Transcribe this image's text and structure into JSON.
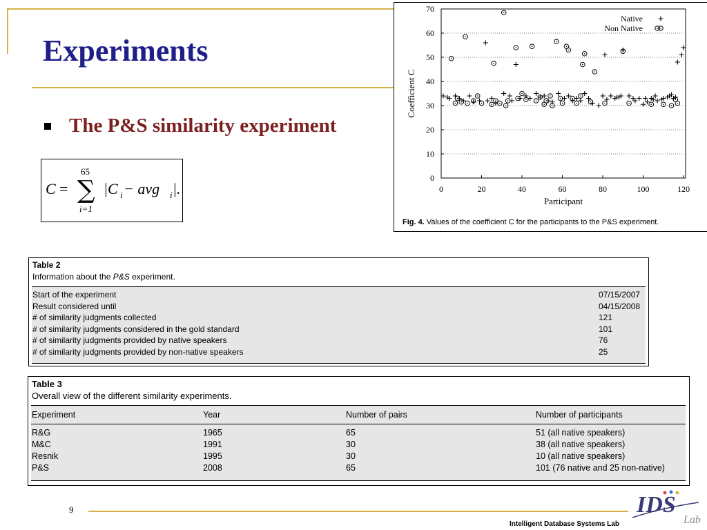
{
  "slide": {
    "title": "Experiments",
    "bullet": "The P&S similarity experiment",
    "page_number": "9",
    "footer": "Intelligent Database Systems Lab",
    "colors": {
      "accent": "#d4b24a",
      "title": "#1f1f8a",
      "bullet_text": "#7b1f1f"
    }
  },
  "formula": {
    "lhs": "C",
    "eq": "=",
    "sum_upper": "65",
    "sum_lower": "i=1",
    "body": "|C",
    "body_sub": "i",
    "minus": " − avg",
    "avg_sub": "i",
    "end": "|."
  },
  "figure": {
    "caption_label": "Fig. 4.",
    "caption_text": " Values of the coefficient C for the participants to the P&S experiment."
  },
  "chart_data": {
    "type": "scatter",
    "xlabel": "Participant",
    "ylabel": "Coefficient C",
    "xlim": [
      0,
      121
    ],
    "ylim": [
      0,
      70
    ],
    "x_ticks": [
      0,
      20,
      40,
      60,
      80,
      100,
      120
    ],
    "y_ticks": [
      0,
      10,
      20,
      30,
      40,
      50,
      60,
      70
    ],
    "grid": "horizontal dotted",
    "legend_position": "top-right",
    "series": [
      {
        "name": "Native",
        "marker": "plus",
        "points": [
          [
            1,
            34
          ],
          [
            3,
            33.5
          ],
          [
            4,
            33
          ],
          [
            7,
            34
          ],
          [
            9,
            33
          ],
          [
            11,
            32
          ],
          [
            14,
            34
          ],
          [
            16,
            31.5
          ],
          [
            19,
            32
          ],
          [
            22,
            56
          ],
          [
            23,
            32
          ],
          [
            25,
            33
          ],
          [
            27,
            31
          ],
          [
            31,
            35
          ],
          [
            34,
            34
          ],
          [
            35,
            32
          ],
          [
            37,
            47
          ],
          [
            39,
            33
          ],
          [
            42,
            34
          ],
          [
            44,
            33
          ],
          [
            47,
            35
          ],
          [
            49,
            33.5
          ],
          [
            51,
            34
          ],
          [
            53,
            32
          ],
          [
            55,
            31.5
          ],
          [
            58,
            35
          ],
          [
            61,
            33
          ],
          [
            63,
            34
          ],
          [
            65,
            32
          ],
          [
            67,
            33
          ],
          [
            69,
            32
          ],
          [
            71,
            35
          ],
          [
            73,
            33
          ],
          [
            75,
            31
          ],
          [
            78,
            30
          ],
          [
            80,
            34
          ],
          [
            81,
            51
          ],
          [
            82,
            32.5
          ],
          [
            84,
            34
          ],
          [
            86,
            33
          ],
          [
            87,
            33.5
          ],
          [
            88,
            33.5
          ],
          [
            89,
            34
          ],
          [
            90,
            53
          ],
          [
            93,
            34
          ],
          [
            95,
            33
          ],
          [
            96,
            32
          ],
          [
            98,
            33
          ],
          [
            100,
            30.5
          ],
          [
            101,
            33
          ],
          [
            102,
            31.5
          ],
          [
            104,
            33
          ],
          [
            105,
            32.5
          ],
          [
            106,
            34
          ],
          [
            107,
            32
          ],
          [
            109,
            32.5
          ],
          [
            110,
            33
          ],
          [
            112,
            33.5
          ],
          [
            113,
            34
          ],
          [
            114,
            34.5
          ],
          [
            115,
            33
          ],
          [
            116,
            33.5
          ],
          [
            117,
            48
          ],
          [
            119,
            51
          ],
          [
            120,
            54
          ]
        ]
      },
      {
        "name": "Non Native",
        "marker": "circle",
        "points": [
          [
            5,
            49.5
          ],
          [
            7,
            31
          ],
          [
            8,
            33
          ],
          [
            10,
            31.5
          ],
          [
            12,
            58.5
          ],
          [
            13,
            31
          ],
          [
            16,
            32
          ],
          [
            18,
            34
          ],
          [
            20,
            31
          ],
          [
            25,
            30.5
          ],
          [
            26,
            47.5
          ],
          [
            27,
            32
          ],
          [
            29,
            31
          ],
          [
            31,
            68.5
          ],
          [
            32,
            30
          ],
          [
            33,
            32
          ],
          [
            37,
            54
          ],
          [
            38,
            33
          ],
          [
            40,
            35
          ],
          [
            42,
            32.5
          ],
          [
            45,
            54.5
          ],
          [
            47,
            32
          ],
          [
            49,
            33.5
          ],
          [
            51,
            30.5
          ],
          [
            52,
            32
          ],
          [
            54,
            34
          ],
          [
            55,
            30
          ],
          [
            57,
            56.5
          ],
          [
            59,
            33
          ],
          [
            60,
            31
          ],
          [
            62,
            54.5
          ],
          [
            63,
            53
          ],
          [
            65,
            33
          ],
          [
            67,
            31
          ],
          [
            69,
            34
          ],
          [
            70,
            47
          ],
          [
            71,
            51.5
          ],
          [
            74,
            31.5
          ],
          [
            76,
            44
          ],
          [
            81,
            31
          ],
          [
            90,
            52.5
          ],
          [
            93,
            31
          ],
          [
            104,
            30.5
          ],
          [
            107,
            62
          ],
          [
            110,
            30.5
          ],
          [
            114,
            30
          ],
          [
            116,
            32.5
          ],
          [
            117,
            31
          ]
        ]
      }
    ]
  },
  "table2": {
    "title": "Table 2",
    "subtitle_pre": "Information about the ",
    "subtitle_em": "P&S",
    "subtitle_post": " experiment.",
    "rows": [
      {
        "label": "Start of the experiment",
        "value": "07/15/2007"
      },
      {
        "label": "Result considered until",
        "value": "04/15/2008"
      },
      {
        "label": "# of similarity judgments collected",
        "value": "121"
      },
      {
        "label": "# of similarity judgments considered in the gold standard",
        "value": "101"
      },
      {
        "label": "# of similarity judgments provided by native speakers",
        "value": "76"
      },
      {
        "label": "# of similarity judgments provided by non-native speakers",
        "value": "25"
      }
    ]
  },
  "table3": {
    "title": "Table 3",
    "subtitle": "Overall view of the different similarity experiments.",
    "headers": [
      "Experiment",
      "Year",
      "Number of pairs",
      "Number of participants"
    ],
    "rows": [
      [
        "R&G",
        "1965",
        "65",
        "51 (all native speakers)"
      ],
      [
        "M&C",
        "1991",
        "30",
        "38 (all native speakers)"
      ],
      [
        "Resnik",
        "1995",
        "30",
        "10 (all native speakers)"
      ],
      [
        "P&S",
        "2008",
        "65",
        "101 (76 native and 25 non-native)"
      ]
    ]
  },
  "logo": {
    "icon": "ids-lab-logo",
    "text": "IDS",
    "small": "Lab"
  }
}
